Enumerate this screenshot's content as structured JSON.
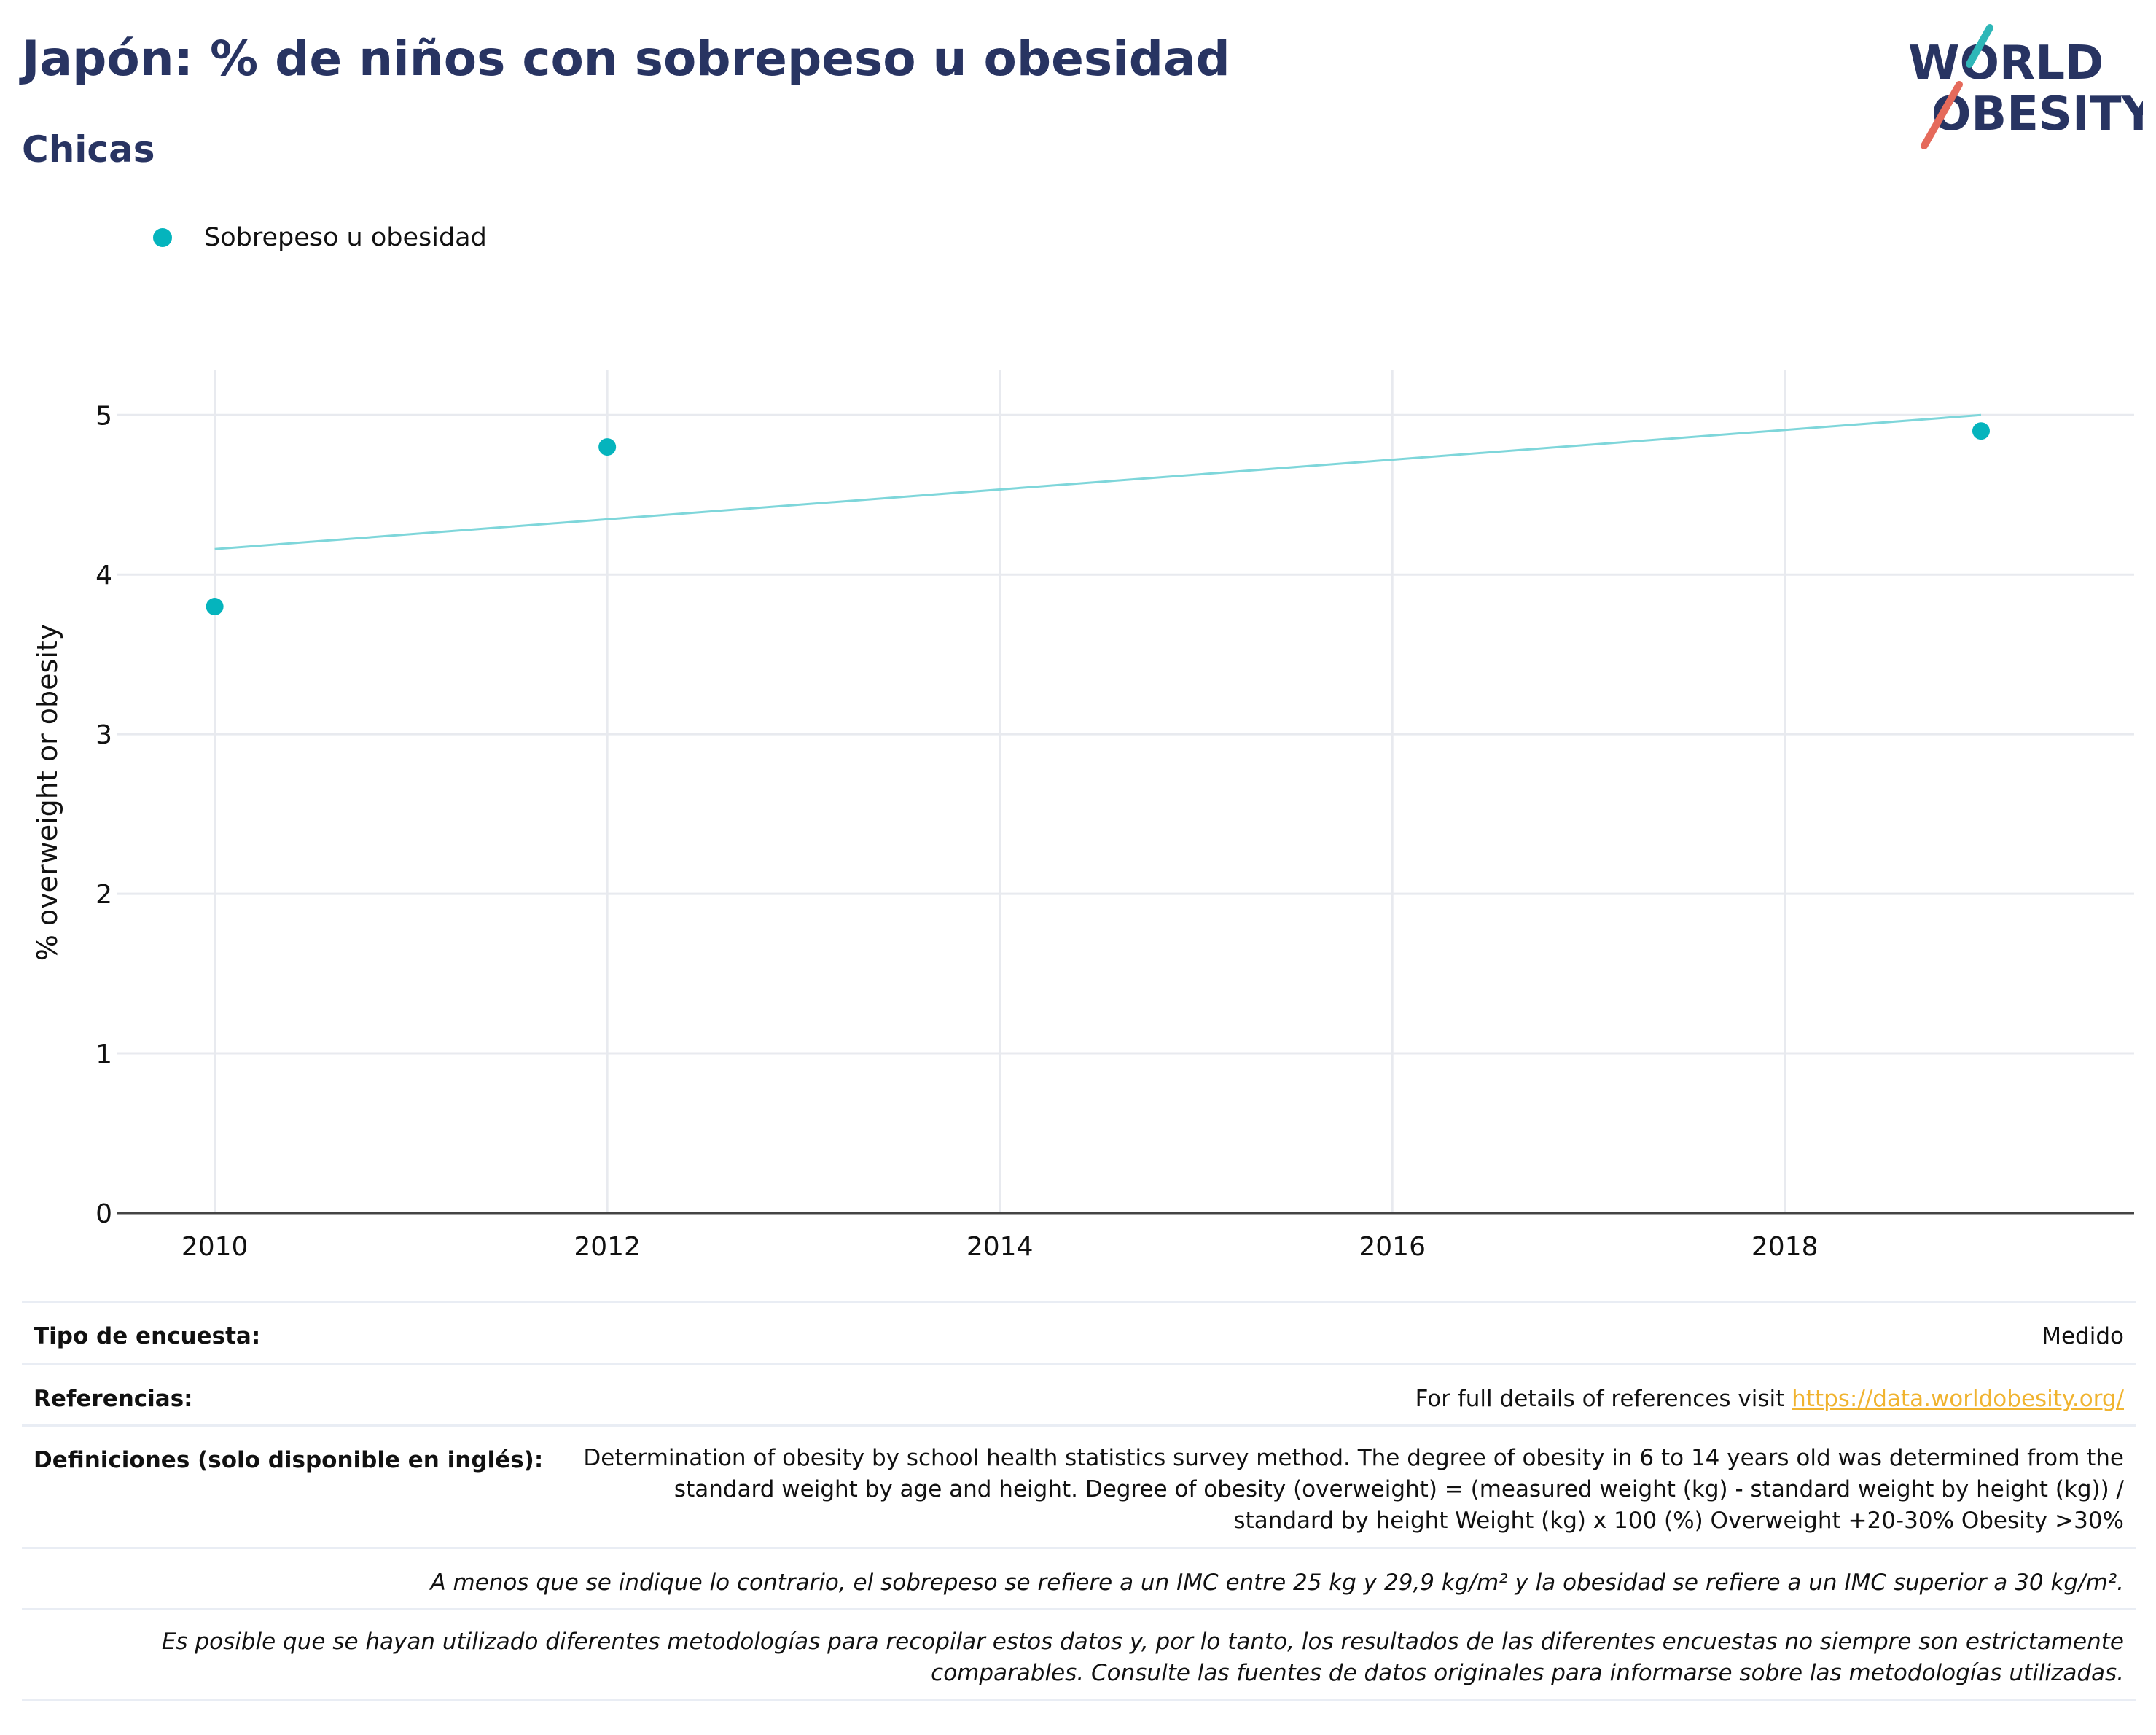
{
  "header": {
    "title": "Japón: % de niños con sobrepeso u obesidad",
    "subtitle": "Chicas"
  },
  "logo": {
    "line1": "WORLD",
    "line2": "OBESITY"
  },
  "colors": {
    "title": "#283462",
    "series": "#05b4bd",
    "trend": "#7ed6da",
    "link": "#f0b32f",
    "logo_teal": "#2fb7b8",
    "logo_coral": "#e56a5b"
  },
  "chart_data": {
    "type": "scatter",
    "title": "Japón: % de niños con sobrepeso u obesidad",
    "subtitle": "Chicas",
    "xlabel": "",
    "ylabel": "% overweight or obesity",
    "xlim": [
      2009.5,
      2019.78
    ],
    "ylim": [
      0,
      5.28
    ],
    "xticks": [
      2010,
      2012,
      2014,
      2016,
      2018
    ],
    "yticks": [
      0,
      1,
      2,
      3,
      4,
      5
    ],
    "grid": true,
    "legend_position": "top-left",
    "series": [
      {
        "name": "Sobrepeso u obesidad",
        "x": [
          2010,
          2012,
          2019
        ],
        "y": [
          3.8,
          4.8,
          4.9
        ]
      }
    ],
    "trendline": {
      "x": [
        2010,
        2019
      ],
      "y": [
        4.16,
        5.0
      ]
    }
  },
  "table": {
    "survey_type_label": "Tipo de encuesta:",
    "survey_type_value": "Medido",
    "references_label": "Referencias:",
    "references_text": "For full details of references visit ",
    "references_link": "https://data.worldobesity.org/",
    "definitions_label": "Definiciones (solo disponible en inglés):",
    "definitions_value": "Determination of obesity by school health statistics survey method. The degree of obesity in 6 to 14 years old was determined from the standard weight by age and height. Degree of obesity (overweight) = (measured weight (kg) - standard weight by height (kg)) / standard by height Weight (kg) x 100 (%) Overweight +20-30% Obesity >30%",
    "note1": "A menos que se indique lo contrario, el sobrepeso se refiere a un IMC entre 25 kg y 29,9 kg/m² y la obesidad se refiere a un IMC superior a 30 kg/m².",
    "note2": "Es posible que se hayan utilizado diferentes metodologías para recopilar estos datos y, por lo tanto, los resultados de las diferentes encuestas no siempre son estrictamente comparables. Consulte las fuentes de datos originales para informarse sobre las metodologías utilizadas."
  }
}
